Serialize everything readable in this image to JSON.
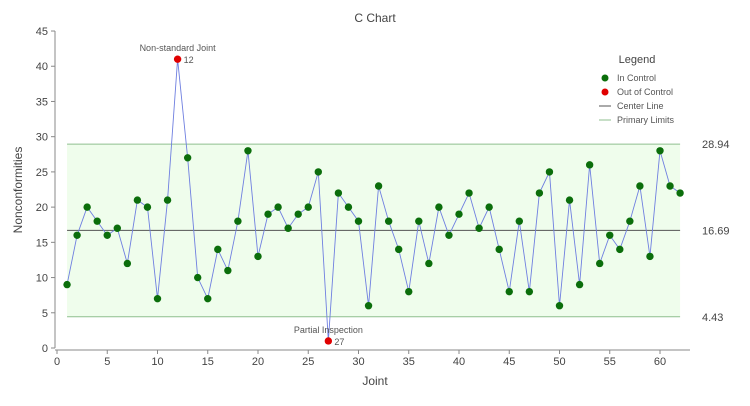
{
  "chart_data": {
    "type": "line",
    "title": "C Chart",
    "xlabel": "Joint",
    "ylabel": "Nonconformities",
    "xlim": [
      0,
      63
    ],
    "ylim": [
      0,
      45
    ],
    "x_ticks": [
      0,
      5,
      10,
      15,
      20,
      25,
      30,
      35,
      40,
      45,
      50,
      55,
      60
    ],
    "y_ticks": [
      0,
      5,
      10,
      15,
      20,
      25,
      30,
      35,
      40,
      45
    ],
    "grid": false,
    "x": [
      1,
      2,
      3,
      4,
      5,
      6,
      7,
      8,
      9,
      10,
      11,
      12,
      13,
      14,
      15,
      16,
      17,
      18,
      19,
      20,
      21,
      22,
      23,
      24,
      25,
      26,
      27,
      28,
      29,
      30,
      31,
      32,
      33,
      34,
      35,
      36,
      37,
      38,
      39,
      40,
      41,
      42,
      43,
      44,
      45,
      46,
      47,
      48,
      49,
      50,
      51,
      52,
      53,
      54,
      55,
      56,
      57,
      58,
      59,
      60,
      61,
      62
    ],
    "values": [
      9,
      16,
      20,
      18,
      16,
      17,
      12,
      21,
      20,
      7,
      21,
      41,
      27,
      10,
      7,
      14,
      11,
      18,
      28,
      13,
      19,
      20,
      17,
      19,
      20,
      25,
      1,
      22,
      20,
      18,
      6,
      23,
      18,
      14,
      8,
      18,
      12,
      20,
      16,
      19,
      22,
      17,
      20,
      14,
      8,
      18,
      8,
      22,
      25,
      6,
      21,
      9,
      26,
      12,
      16,
      14,
      18,
      23,
      13,
      28,
      23,
      22
    ],
    "out_of_control": [
      12,
      27
    ],
    "center_line": 16.69,
    "ucl": 28.94,
    "lcl": 4.43,
    "limit_labels": [
      "28.94",
      "16.69",
      "4.43"
    ],
    "annotations": [
      {
        "x": 12,
        "text": "Non-standard Joint",
        "point_label": "12"
      },
      {
        "x": 27,
        "text": "Partial Inspection",
        "point_label": "27"
      }
    ],
    "legend": {
      "title": "Legend",
      "position": "top-right",
      "items": [
        {
          "label": "In Control",
          "kind": "marker",
          "color": "#0b6e0b"
        },
        {
          "label": "Out of Control",
          "kind": "marker",
          "color": "#e00000"
        },
        {
          "label": "Center Line",
          "kind": "line",
          "color": "#555555"
        },
        {
          "label": "Primary Limits",
          "kind": "line",
          "color": "#8fbf8f"
        }
      ]
    },
    "colors": {
      "line": "#6f7fe0",
      "in_control": "#0b6e0b",
      "out_of_control": "#e00000",
      "center_line": "#555555",
      "limits": "#8fbf8f",
      "band": "#effdec"
    }
  }
}
